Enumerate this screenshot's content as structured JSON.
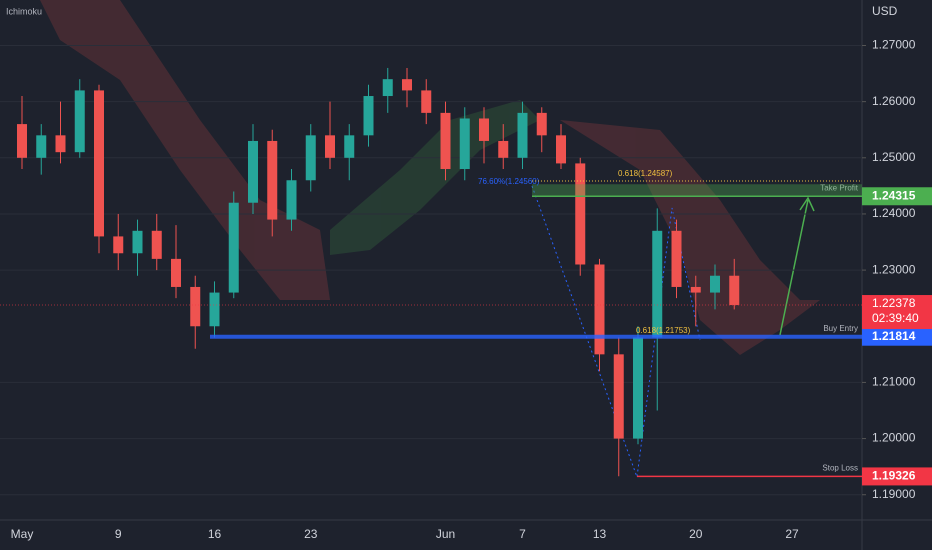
{
  "chart_data": {
    "type": "candlestick",
    "indicator": "Ichimoku",
    "currency": "USD",
    "categories": [
      "May",
      null,
      null,
      null,
      null,
      "9",
      null,
      null,
      null,
      null,
      "16",
      null,
      null,
      null,
      null,
      "23",
      null,
      null,
      null,
      null,
      null,
      null,
      "Jun",
      null,
      null,
      null,
      "7",
      null,
      null,
      null,
      "13",
      null,
      null,
      null,
      null,
      "20",
      null,
      null,
      null,
      null,
      "27",
      null,
      null
    ],
    "open": [
      1.256,
      1.25,
      1.254,
      1.251,
      1.262,
      1.236,
      1.233,
      1.237,
      1.232,
      1.227,
      1.22,
      1.226,
      1.242,
      1.253,
      1.239,
      1.246,
      1.254,
      1.25,
      1.254,
      1.261,
      1.264,
      1.262,
      1.258,
      1.248,
      1.257,
      1.253,
      1.25,
      1.258,
      1.254,
      1.249,
      1.231,
      1.215,
      1.2,
      1.218,
      1.237,
      1.227,
      1.226,
      1.229,
      null,
      null,
      null,
      null,
      null
    ],
    "high": [
      1.261,
      1.256,
      1.26,
      1.264,
      1.263,
      1.24,
      1.239,
      1.24,
      1.238,
      1.229,
      1.228,
      1.244,
      1.256,
      1.255,
      1.248,
      1.256,
      1.26,
      1.256,
      1.263,
      1.266,
      1.266,
      1.264,
      1.26,
      1.259,
      1.259,
      1.256,
      1.26,
      1.259,
      1.256,
      1.25,
      1.232,
      1.218,
      1.22,
      1.241,
      1.239,
      1.229,
      1.231,
      1.232,
      null,
      null,
      null,
      null,
      null
    ],
    "low": [
      1.248,
      1.247,
      1.249,
      1.25,
      1.233,
      1.23,
      1.229,
      1.23,
      1.225,
      1.216,
      1.218,
      1.225,
      1.24,
      1.236,
      1.237,
      1.244,
      1.248,
      1.246,
      1.252,
      1.258,
      1.259,
      1.256,
      1.246,
      1.246,
      1.249,
      1.248,
      1.248,
      1.251,
      1.248,
      1.229,
      1.212,
      1.1933,
      1.199,
      1.205,
      1.225,
      1.22,
      1.223,
      1.223,
      null,
      null,
      null,
      null,
      null
    ],
    "close": [
      1.25,
      1.254,
      1.251,
      1.262,
      1.236,
      1.233,
      1.237,
      1.232,
      1.227,
      1.22,
      1.226,
      1.242,
      1.253,
      1.239,
      1.246,
      1.254,
      1.25,
      1.254,
      1.261,
      1.264,
      1.262,
      1.258,
      1.248,
      1.257,
      1.253,
      1.25,
      1.258,
      1.254,
      1.249,
      1.231,
      1.215,
      1.2,
      1.218,
      1.237,
      1.227,
      1.226,
      1.229,
      1.22378,
      null,
      null,
      null,
      null,
      null
    ],
    "up_color": "#26a69a",
    "down_color": "#ef5350",
    "ylim": [
      1.1855,
      1.2781
    ],
    "yticks": [
      {
        "value": 1.19,
        "label": "1.19000"
      },
      {
        "value": 1.2,
        "label": "1.20000"
      },
      {
        "value": 1.21,
        "label": "1.21000"
      },
      {
        "value": 1.23,
        "label": "1.23000"
      },
      {
        "value": 1.24,
        "label": "1.24000"
      },
      {
        "value": 1.25,
        "label": "1.25000"
      },
      {
        "value": 1.26,
        "label": "1.26000"
      },
      {
        "value": 1.27,
        "label": "1.27000"
      }
    ],
    "last_price": {
      "value": 1.22378,
      "countdown": "02:39:40",
      "color": "#f23645"
    },
    "levels": [
      {
        "name": "Take Profit",
        "value": 1.24315,
        "color": "#4caf50"
      },
      {
        "name": "Buy Entry",
        "value": 1.21814,
        "color": "#2962ff"
      },
      {
        "name": "Stop Loss",
        "value": 1.19326,
        "color": "#f23645"
      }
    ],
    "fib_labels": [
      "0.618(1.24587)",
      "76.60%(1.24560)",
      "0.618(1.21753)"
    ]
  }
}
